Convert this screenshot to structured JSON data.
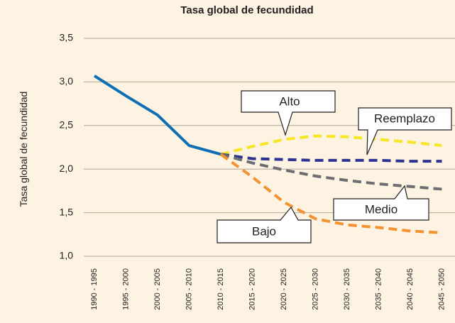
{
  "chart_data": {
    "type": "line",
    "title": "Tasa global de fecundidad",
    "y_label": "Tasa global de fecundidad",
    "categories": [
      "1990 - 1995",
      "1995 - 2000",
      "2000 - 2005",
      "2005 - 2010",
      "2010 - 2015",
      "2015 - 2020",
      "2020 - 2025",
      "2025 - 2030",
      "2030 - 2035",
      "2035 - 2040",
      "2040 - 2045",
      "2045 - 2050"
    ],
    "series": [
      {
        "color": "#0f6fb5",
        "dashed": false,
        "values": [
          3.07,
          2.84,
          2.62,
          2.27,
          2.17,
          null,
          null,
          null,
          null,
          null,
          null,
          null
        ]
      },
      {
        "name": "Alto",
        "color": "#f5e626",
        "dashed": true,
        "values": [
          null,
          null,
          null,
          null,
          2.17,
          2.26,
          2.34,
          2.38,
          2.37,
          2.34,
          2.31,
          2.27
        ]
      },
      {
        "name": "Reemplazo",
        "color": "#2c3393",
        "dashed": true,
        "values": [
          null,
          null,
          null,
          null,
          2.17,
          2.12,
          2.11,
          2.1,
          2.1,
          2.1,
          2.09,
          2.09
        ]
      },
      {
        "name": "Medio",
        "color": "#6d6e71",
        "dashed": true,
        "values": [
          null,
          null,
          null,
          null,
          2.17,
          2.07,
          1.99,
          1.92,
          1.87,
          1.83,
          1.8,
          1.77
        ]
      },
      {
        "name": "Bajo",
        "color": "#f39232",
        "dashed": true,
        "values": [
          null,
          null,
          null,
          null,
          2.17,
          1.91,
          1.62,
          1.43,
          1.36,
          1.33,
          1.29,
          1.27
        ]
      }
    ],
    "ylim": [
      1.0,
      3.5
    ],
    "yticks": [
      {
        "value": 1.0,
        "label": "1,0"
      },
      {
        "value": 1.5,
        "label": "1,5"
      },
      {
        "value": 2.0,
        "label": "2,0"
      },
      {
        "value": 2.5,
        "label": "2,5"
      },
      {
        "value": 3.0,
        "label": "3,0"
      },
      {
        "value": 3.5,
        "label": "3,5"
      }
    ],
    "grid": true
  }
}
